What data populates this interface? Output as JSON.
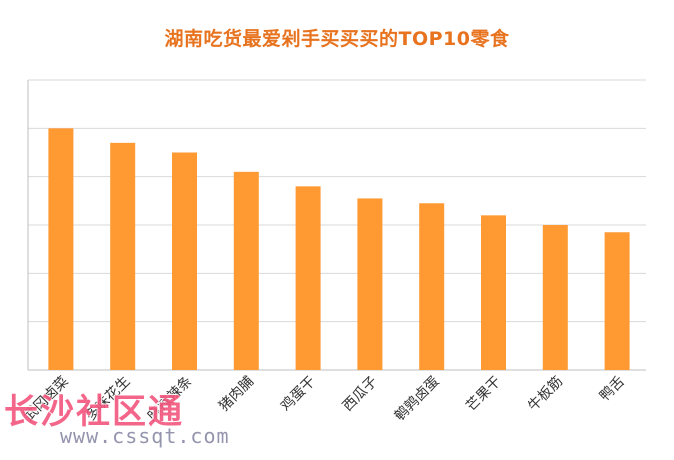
{
  "chart_data": {
    "type": "bar",
    "title": "湖南吃货最爱剁手买买买的TOP10零食",
    "categories": [
      "武冈卤菜",
      "多味花生",
      "麻辣辣条",
      "猪肉脯",
      "鸡蛋干",
      "西瓜子",
      "鹌鹑卤蛋",
      "芒果干",
      "牛板筋",
      "鸭舌"
    ],
    "values": [
      100,
      94,
      90,
      82,
      76,
      71,
      69,
      64,
      60,
      57
    ],
    "xlabel": "",
    "ylabel": "",
    "ylim": [
      0,
      120
    ],
    "grid": true,
    "legend": "none",
    "colors": {
      "bar": "#ff9a33",
      "title": "#e8731f",
      "grid": "#d9d9d9",
      "axis": "#bfbfbf",
      "label": "#333333"
    }
  },
  "watermark": {
    "text": "长沙社区通",
    "url": "www.cssqt.com"
  }
}
